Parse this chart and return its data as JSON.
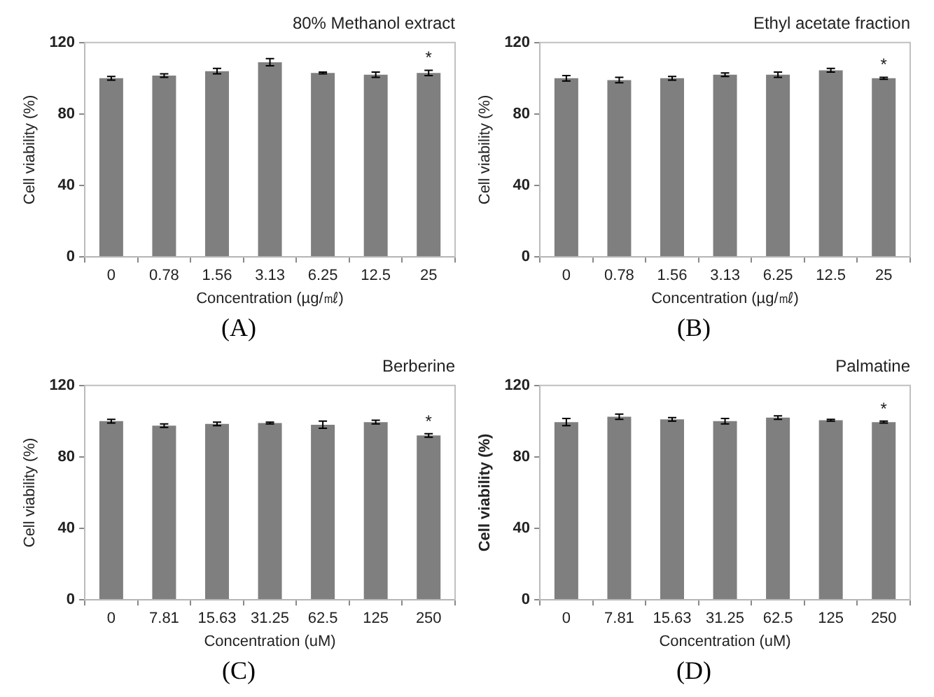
{
  "chart_data": [
    {
      "type": "bar",
      "title": "80% Methanol extract",
      "xlabel": "Concentration (µg/㎖)",
      "ylabel": "Cell viability (%)",
      "categories": [
        "0",
        "0.78",
        "1.56",
        "3.13",
        "6.25",
        "12.5",
        "25"
      ],
      "values": [
        100,
        101.5,
        104,
        109,
        103,
        102,
        103
      ],
      "errors": [
        1,
        1,
        1.5,
        2,
        0.5,
        1.5,
        1.5
      ],
      "color": "#7f7f7f",
      "ylim": [
        0,
        120
      ],
      "yticks": [
        0,
        40,
        80,
        120
      ],
      "grid": false,
      "annotations": [
        {
          "text": "*",
          "x": "25",
          "y": 105
        },
        "(A)"
      ]
    },
    {
      "type": "bar",
      "title": "Ethyl acetate fraction",
      "xlabel": "Concentration (µg/㎖)",
      "ylabel": "Cell viability (%)",
      "categories": [
        "0",
        "0.78",
        "1.56",
        "3.13",
        "6.25",
        "12.5",
        "25"
      ],
      "values": [
        100,
        99,
        100,
        102,
        102,
        104.5,
        100
      ],
      "errors": [
        1.5,
        1.5,
        1,
        1,
        1.5,
        1,
        0.5
      ],
      "color": "#7f7f7f",
      "ylim": [
        0,
        120
      ],
      "yticks": [
        0,
        40,
        80,
        120
      ],
      "grid": false,
      "annotations": [
        {
          "text": "*",
          "x": "25",
          "y": 101
        },
        "(B)"
      ]
    },
    {
      "type": "bar",
      "title": "Berberine",
      "xlabel": "Concentration (uM)",
      "ylabel": "Cell viability (%)",
      "categories": [
        "0",
        "7.81",
        "15.63",
        "31.25",
        "62.5",
        "125",
        "250"
      ],
      "values": [
        100,
        97.5,
        98.5,
        99,
        98,
        99.5,
        92
      ],
      "errors": [
        1,
        1,
        1,
        0.5,
        2,
        1,
        1
      ],
      "color": "#7f7f7f",
      "ylim": [
        0,
        120
      ],
      "yticks": [
        0,
        40,
        80,
        120
      ],
      "grid": false,
      "annotations": [
        {
          "text": "*",
          "x": "250",
          "y": 93
        },
        "(C)"
      ]
    },
    {
      "type": "bar",
      "title": "Palmatine",
      "xlabel": "Concentration (uM)",
      "ylabel": "Cell viability (%)",
      "categories": [
        "0",
        "7.81",
        "15.63",
        "31.25",
        "62.5",
        "125",
        "250"
      ],
      "values": [
        99.5,
        102.5,
        101,
        100,
        102,
        100.5,
        99.5
      ],
      "errors": [
        2,
        1.5,
        1,
        1.5,
        1,
        0.5,
        0.5
      ],
      "color": "#7f7f7f",
      "ylim": [
        0,
        120
      ],
      "yticks": [
        0,
        40,
        80,
        120
      ],
      "grid": false,
      "annotations": [
        {
          "text": "*",
          "x": "250",
          "y": 100
        },
        "(D)"
      ]
    }
  ]
}
